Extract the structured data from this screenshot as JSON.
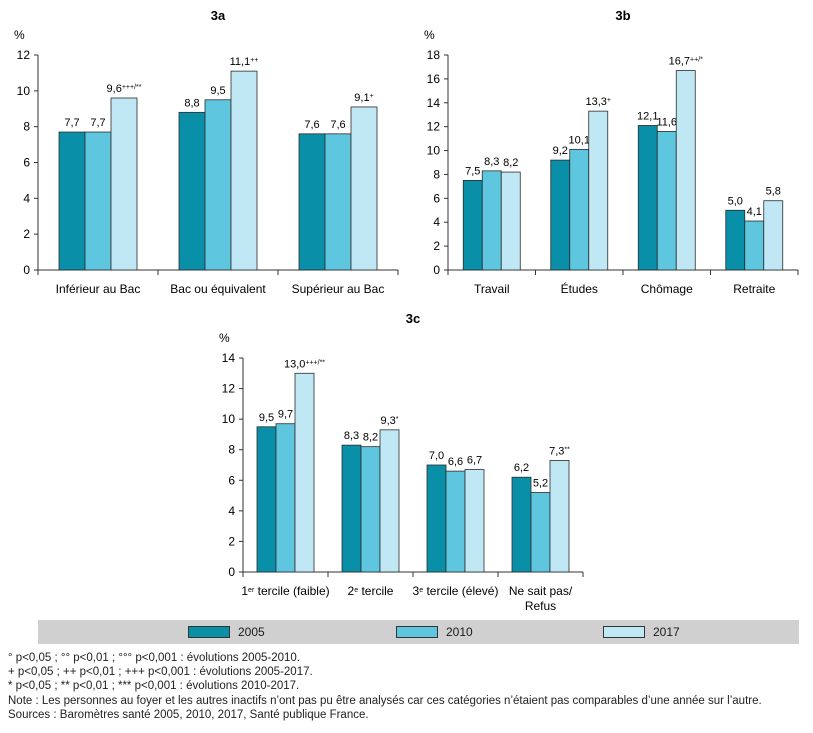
{
  "colors": {
    "2005": "#0a8fa8",
    "2010": "#5ec6df",
    "2017": "#bfe8f4",
    "axis": "#333333"
  },
  "legend": [
    {
      "label": "2005",
      "color": "#0a8fa8"
    },
    {
      "label": "2010",
      "color": "#5ec6df"
    },
    {
      "label": "2017",
      "color": "#bfe8f4"
    }
  ],
  "chart_data": [
    {
      "id": "3a",
      "type": "bar",
      "title": "3a",
      "ylabel": "%",
      "ylim": [
        0,
        12
      ],
      "yticks": [
        0,
        2,
        4,
        6,
        8,
        10,
        12
      ],
      "categories": [
        "Inférieur au Bac",
        "Bac ou équivalent",
        "Supérieur au Bac"
      ],
      "series": [
        {
          "name": "2005",
          "values": [
            7.7,
            8.8,
            7.6
          ],
          "labels": [
            "7,7",
            "8,8",
            "7,6"
          ]
        },
        {
          "name": "2010",
          "values": [
            7.7,
            9.5,
            7.6
          ],
          "labels": [
            "7,7",
            "9,5",
            "7,6"
          ]
        },
        {
          "name": "2017",
          "values": [
            9.6,
            11.1,
            9.1
          ],
          "labels": [
            "9,6",
            "11,1",
            "9,1"
          ],
          "sup": [
            "+++/**",
            "++",
            "+"
          ]
        }
      ]
    },
    {
      "id": "3b",
      "type": "bar",
      "title": "3b",
      "ylabel": "%",
      "ylim": [
        0,
        18
      ],
      "yticks": [
        0,
        2,
        4,
        6,
        8,
        10,
        12,
        14,
        16,
        18
      ],
      "categories": [
        "Travail",
        "Études",
        "Chômage",
        "Retraite"
      ],
      "series": [
        {
          "name": "2005",
          "values": [
            7.5,
            9.2,
            12.1,
            5.0
          ],
          "labels": [
            "7,5",
            "9,2",
            "12,1",
            "5,0"
          ]
        },
        {
          "name": "2010",
          "values": [
            8.3,
            10.1,
            11.6,
            4.1
          ],
          "labels": [
            "8,3",
            "10,1",
            "11,6",
            "4,1"
          ]
        },
        {
          "name": "2017",
          "values": [
            8.2,
            13.3,
            16.7,
            5.8
          ],
          "labels": [
            "8,2",
            "13,3",
            "16,7",
            "5,8"
          ],
          "sup": [
            "",
            "+",
            "++/*",
            ""
          ]
        }
      ]
    },
    {
      "id": "3c",
      "type": "bar",
      "title": "3c",
      "ylabel": "%",
      "ylim": [
        0,
        14
      ],
      "yticks": [
        0,
        2,
        4,
        6,
        8,
        10,
        12,
        14
      ],
      "categories": [
        "1er tercile (faible)",
        "2e tercile",
        "3e tercile (élevé)",
        "Ne sait pas/ Refus"
      ],
      "category_parts": [
        {
          "pre": "1",
          "sup": "er",
          "post": " tercile (faible)"
        },
        {
          "pre": "2",
          "sup": "e",
          "post": " tercile"
        },
        {
          "pre": "3",
          "sup": "e",
          "post": " tercile (élevé)"
        },
        {
          "lines": [
            "Ne sait pas/",
            "Refus"
          ]
        }
      ],
      "series": [
        {
          "name": "2005",
          "values": [
            9.5,
            8.3,
            7.0,
            6.2
          ],
          "labels": [
            "9,5",
            "8,3",
            "7,0",
            "6,2"
          ]
        },
        {
          "name": "2010",
          "values": [
            9.7,
            8.2,
            6.6,
            5.2
          ],
          "labels": [
            "9,7",
            "8,2",
            "6,6",
            "5,2"
          ]
        },
        {
          "name": "2017",
          "values": [
            13.0,
            9.3,
            6.7,
            7.3
          ],
          "labels": [
            "13,0",
            "9,3",
            "6,7",
            "7,3"
          ],
          "sup": [
            "+++/**",
            "*",
            "",
            "**"
          ]
        }
      ]
    }
  ],
  "notes": {
    "line1": "° p<0,05 ; °° p<0,01 ; °°° p<0,001 : évolutions 2005-2010.",
    "line2": "+ p<0,05 ; ++ p<0,01 ; +++ p<0,001 : évolutions 2005-2017.",
    "line3": "* p<0,05 ; ** p<0,01 ; *** p<0,001 : évolutions 2010-2017.",
    "line4": "Note : Les personnes au foyer et les autres inactifs n’ont pas pu être analysés car ces catégories n’étaient pas comparables d’une année sur l’autre.",
    "line5": "Sources : Baromètres santé 2005, 2010, 2017, Santé publique France."
  }
}
